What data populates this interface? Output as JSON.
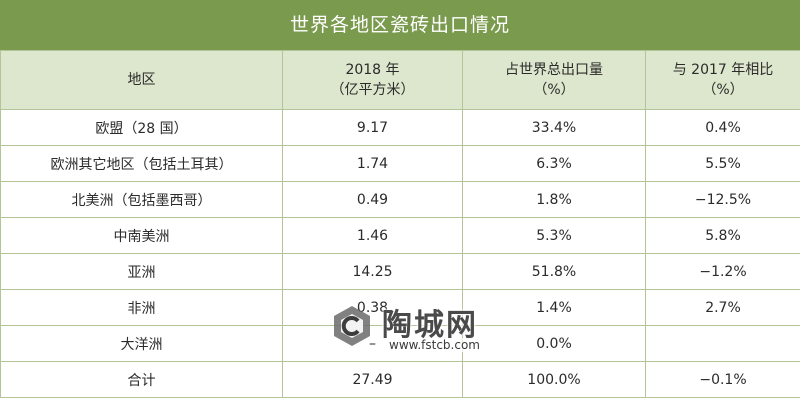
{
  "title": "世界各地区瓷砖出口情况",
  "headers": {
    "region": "地区",
    "volume_line1": "2018 年",
    "volume_line2": "（亿平方米）",
    "share_line1": "占世界总出口量",
    "share_line2": "（%）",
    "change_line1": "与 2017 年相比",
    "change_line2": "（%）"
  },
  "rows": [
    {
      "region": "欧盟（28 国）",
      "volume": "9.17",
      "share": "33.4%",
      "change": "0.4%"
    },
    {
      "region": "欧洲其它地区（包括土耳其）",
      "volume": "1.74",
      "share": "6.3%",
      "change": "5.5%"
    },
    {
      "region": "北美洲（包括墨西哥）",
      "volume": "0.49",
      "share": "1.8%",
      "change": "−12.5%"
    },
    {
      "region": "中南美洲",
      "volume": "1.46",
      "share": "5.3%",
      "change": "5.8%"
    },
    {
      "region": "亚洲",
      "volume": "14.25",
      "share": "51.8%",
      "change": "−1.2%"
    },
    {
      "region": "非洲",
      "volume": "0.38",
      "share": "1.4%",
      "change": "2.7%"
    },
    {
      "region": "大洋洲",
      "volume": "–",
      "share": "0.0%",
      "change": ""
    },
    {
      "region": "合计",
      "volume": "27.49",
      "share": "100.0%",
      "change": "−0.1%"
    }
  ],
  "watermark": {
    "brand": "陶城网",
    "url": "www.fstcb.com"
  },
  "colors": {
    "title_bg": "#7a9a4e",
    "header_bg": "#dde7cd",
    "border": "#b3c499"
  }
}
